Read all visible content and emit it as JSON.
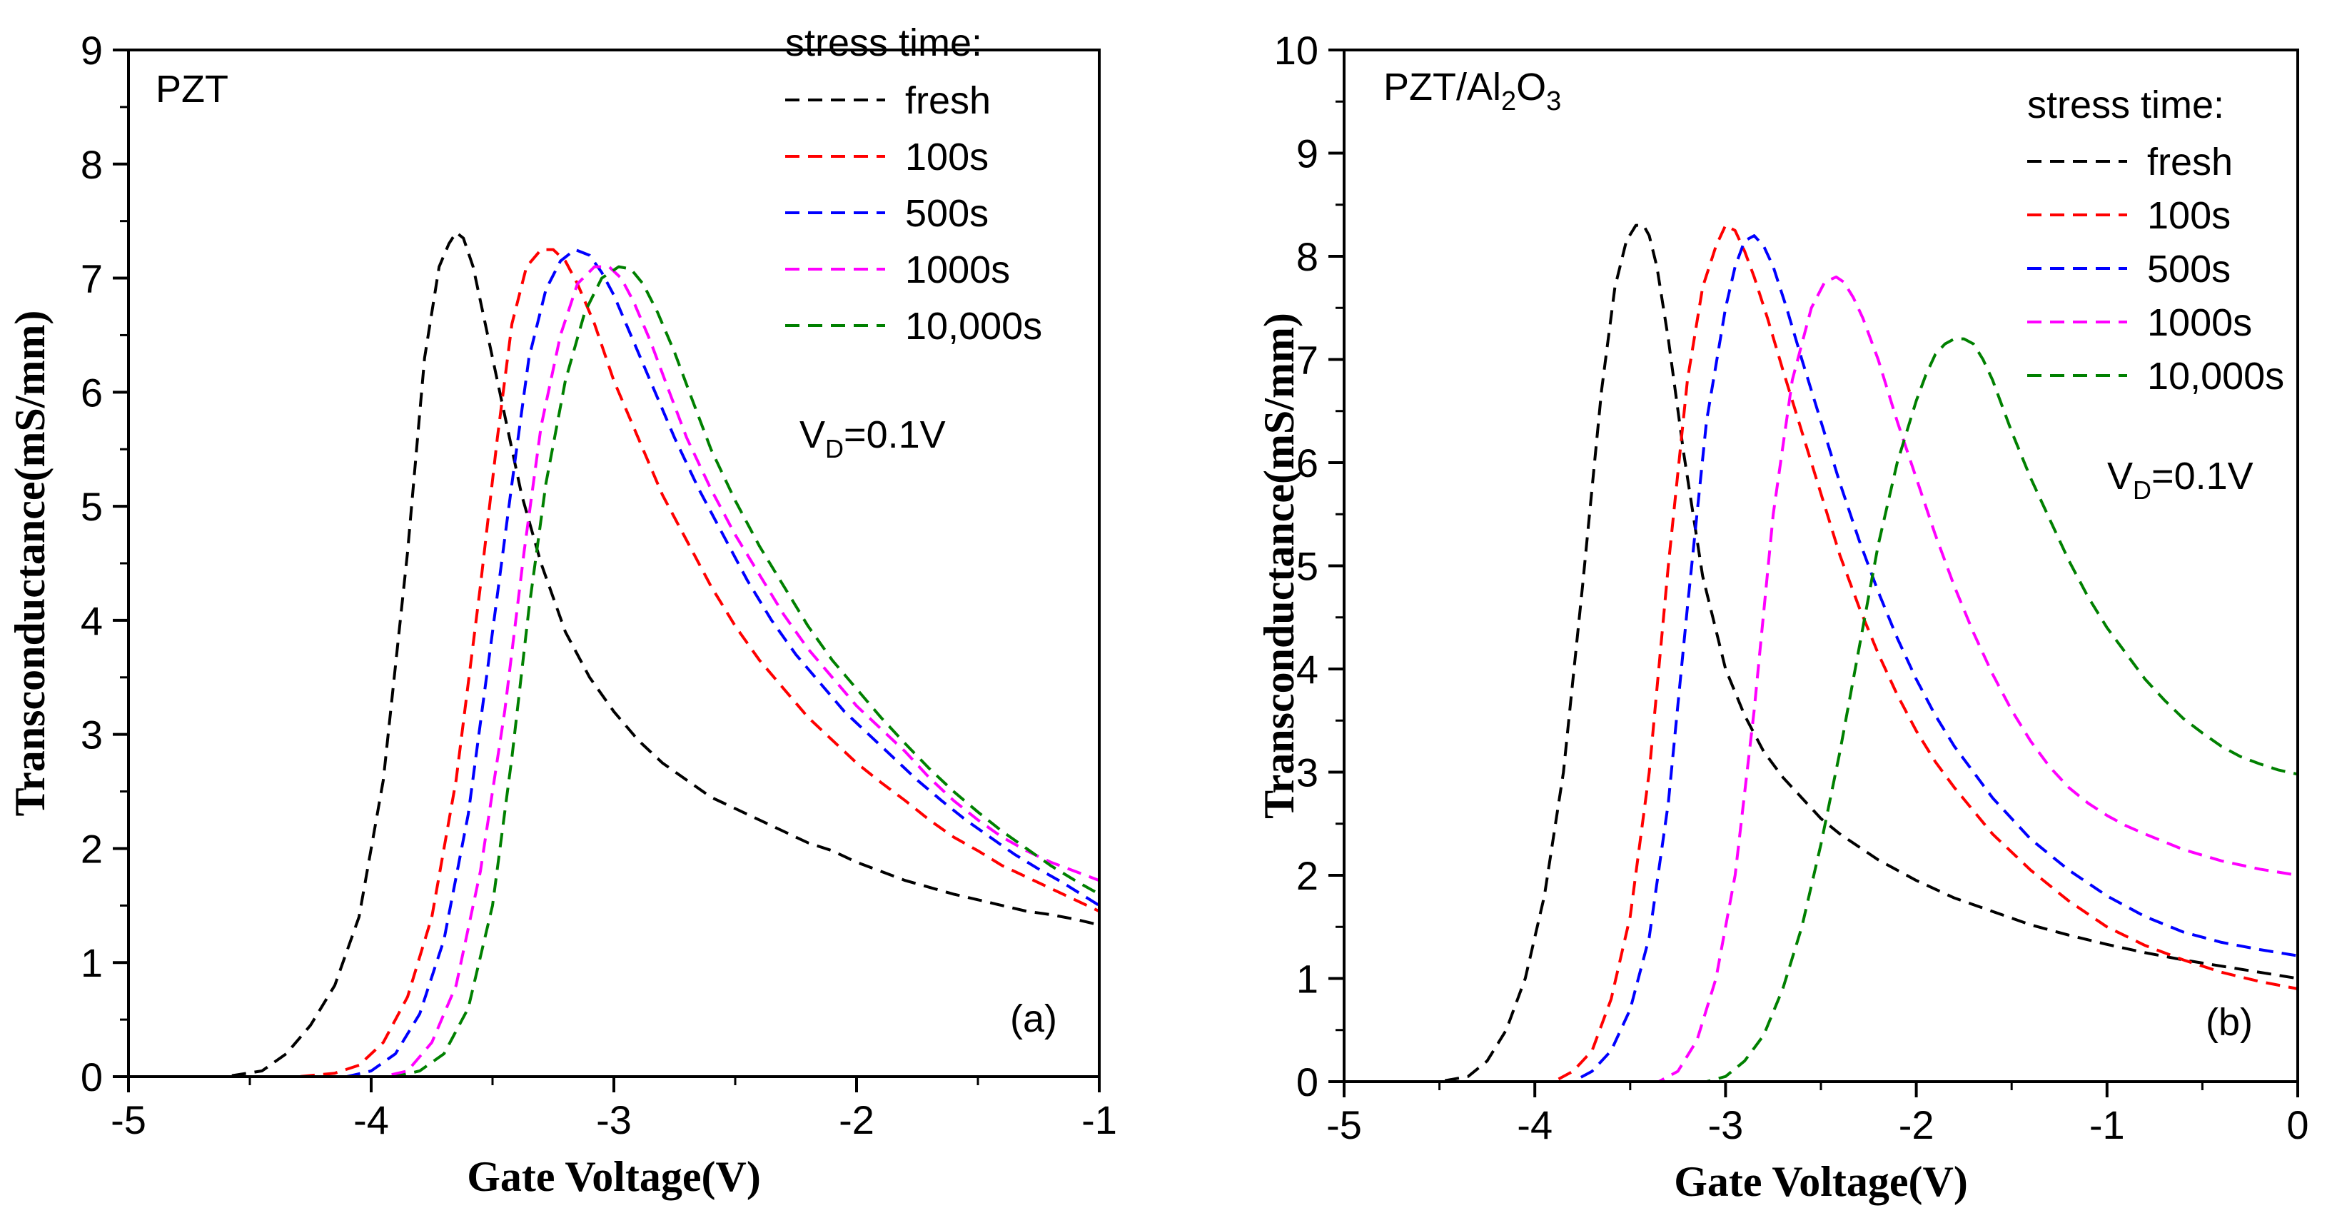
{
  "chart_data": [
    {
      "type": "line",
      "panel_label": "(a)",
      "sample_label": "PZT",
      "xlabel": "Gate Voltage(V)",
      "ylabel": "Transconductance(mS/mm)",
      "xlim": [
        -5,
        -1
      ],
      "ylim": [
        0,
        9
      ],
      "xticks": [
        -5,
        -4,
        -3,
        -2,
        -1
      ],
      "yticks": [
        0,
        1,
        2,
        3,
        4,
        5,
        6,
        7,
        8,
        9
      ],
      "legend_title": "stress time:",
      "annotation": {
        "base": "V",
        "sub": "D",
        "rest": "=0.1V"
      },
      "series": [
        {
          "name": "fresh",
          "color": "#000000",
          "x": [
            -4.95,
            -4.6,
            -4.45,
            -4.35,
            -4.25,
            -4.15,
            -4.05,
            -3.95,
            -3.85,
            -3.78,
            -3.72,
            -3.68,
            -3.65,
            -3.62,
            -3.58,
            -3.52,
            -3.45,
            -3.38,
            -3.3,
            -3.2,
            -3.1,
            -3.0,
            -2.9,
            -2.8,
            -2.7,
            -2.6,
            -2.5,
            -2.4,
            -2.3,
            -2.2,
            -2.1,
            -2.0,
            -1.9,
            -1.8,
            -1.7,
            -1.6,
            -1.5,
            -1.4,
            -1.3,
            -1.2,
            -1.1,
            -1.0
          ],
          "y": [
            0,
            0,
            0.05,
            0.2,
            0.45,
            0.8,
            1.4,
            2.6,
            4.6,
            6.3,
            7.1,
            7.3,
            7.4,
            7.35,
            7.1,
            6.5,
            5.8,
            5.1,
            4.5,
            3.9,
            3.5,
            3.2,
            2.95,
            2.75,
            2.6,
            2.45,
            2.35,
            2.25,
            2.15,
            2.05,
            1.98,
            1.88,
            1.8,
            1.72,
            1.66,
            1.6,
            1.55,
            1.5,
            1.45,
            1.42,
            1.38,
            1.33
          ]
        },
        {
          "name": "100s",
          "color": "#ff0000",
          "x": [
            -4.95,
            -4.3,
            -4.15,
            -4.05,
            -3.95,
            -3.85,
            -3.75,
            -3.65,
            -3.55,
            -3.48,
            -3.42,
            -3.36,
            -3.3,
            -3.25,
            -3.2,
            -3.15,
            -3.08,
            -3.0,
            -2.9,
            -2.8,
            -2.7,
            -2.6,
            -2.5,
            -2.4,
            -2.3,
            -2.2,
            -2.1,
            -2.0,
            -1.9,
            -1.8,
            -1.7,
            -1.6,
            -1.5,
            -1.4,
            -1.3,
            -1.2,
            -1.1,
            -1.0
          ],
          "y": [
            0,
            0,
            0.03,
            0.1,
            0.3,
            0.7,
            1.4,
            2.6,
            4.3,
            5.6,
            6.6,
            7.1,
            7.25,
            7.25,
            7.15,
            6.95,
            6.6,
            6.1,
            5.6,
            5.1,
            4.7,
            4.3,
            3.95,
            3.65,
            3.4,
            3.15,
            2.95,
            2.75,
            2.58,
            2.42,
            2.25,
            2.1,
            1.98,
            1.85,
            1.75,
            1.65,
            1.55,
            1.45
          ]
        },
        {
          "name": "500s",
          "color": "#0000ff",
          "x": [
            -4.95,
            -4.1,
            -4.0,
            -3.9,
            -3.8,
            -3.7,
            -3.6,
            -3.5,
            -3.42,
            -3.35,
            -3.28,
            -3.22,
            -3.16,
            -3.1,
            -3.05,
            -3.0,
            -2.92,
            -2.85,
            -2.75,
            -2.65,
            -2.55,
            -2.45,
            -2.35,
            -2.25,
            -2.15,
            -2.05,
            -1.95,
            -1.85,
            -1.75,
            -1.65,
            -1.55,
            -1.45,
            -1.35,
            -1.25,
            -1.15,
            -1.0
          ],
          "y": [
            0,
            0,
            0.05,
            0.2,
            0.55,
            1.2,
            2.3,
            3.9,
            5.2,
            6.3,
            6.9,
            7.15,
            7.25,
            7.2,
            7.05,
            6.85,
            6.45,
            6.1,
            5.6,
            5.15,
            4.75,
            4.35,
            4.0,
            3.7,
            3.45,
            3.2,
            3.0,
            2.8,
            2.6,
            2.42,
            2.25,
            2.1,
            1.95,
            1.82,
            1.7,
            1.5
          ]
        },
        {
          "name": "1000s",
          "color": "#ff00ff",
          "x": [
            -4.95,
            -3.95,
            -3.85,
            -3.75,
            -3.65,
            -3.55,
            -3.45,
            -3.37,
            -3.3,
            -3.22,
            -3.15,
            -3.08,
            -3.02,
            -2.97,
            -2.92,
            -2.85,
            -2.78,
            -2.7,
            -2.6,
            -2.5,
            -2.4,
            -2.3,
            -2.2,
            -2.1,
            -2.0,
            -1.9,
            -1.8,
            -1.7,
            -1.6,
            -1.5,
            -1.4,
            -1.3,
            -1.2,
            -1.1,
            -1.0
          ],
          "y": [
            0,
            0,
            0.05,
            0.3,
            0.8,
            1.8,
            3.2,
            4.6,
            5.7,
            6.5,
            6.95,
            7.1,
            7.1,
            7.0,
            6.8,
            6.45,
            6.05,
            5.6,
            5.15,
            4.75,
            4.4,
            4.05,
            3.75,
            3.5,
            3.25,
            3.05,
            2.85,
            2.62,
            2.42,
            2.25,
            2.1,
            1.98,
            1.88,
            1.8,
            1.72
          ]
        },
        {
          "name": "10,000s",
          "color": "#008000",
          "x": [
            -4.95,
            -3.9,
            -3.8,
            -3.7,
            -3.6,
            -3.5,
            -3.42,
            -3.35,
            -3.28,
            -3.2,
            -3.12,
            -3.05,
            -2.98,
            -2.93,
            -2.88,
            -2.82,
            -2.75,
            -2.68,
            -2.6,
            -2.5,
            -2.4,
            -2.3,
            -2.2,
            -2.1,
            -2.0,
            -1.9,
            -1.8,
            -1.7,
            -1.6,
            -1.5,
            -1.4,
            -1.3,
            -1.2,
            -1.1,
            -1.0
          ],
          "y": [
            0,
            0,
            0.05,
            0.2,
            0.6,
            1.5,
            2.8,
            4.1,
            5.2,
            6.1,
            6.7,
            7.0,
            7.1,
            7.08,
            6.95,
            6.7,
            6.35,
            5.95,
            5.5,
            5.05,
            4.65,
            4.3,
            3.95,
            3.65,
            3.4,
            3.15,
            2.92,
            2.7,
            2.5,
            2.32,
            2.15,
            2.0,
            1.85,
            1.72,
            1.6
          ]
        }
      ]
    },
    {
      "type": "line",
      "panel_label": "(b)",
      "sample_label": "PZT/Al",
      "sample_sub1": "2",
      "sample_mid": "O",
      "sample_sub2": "3",
      "xlabel": "Gate Voltage(V)",
      "ylabel": "Transconductance(mS/mm)",
      "xlim": [
        -5,
        0
      ],
      "ylim": [
        0,
        10
      ],
      "xticks": [
        -5,
        -4,
        -3,
        -2,
        -1,
        0
      ],
      "yticks": [
        0,
        1,
        2,
        3,
        4,
        5,
        6,
        7,
        8,
        9,
        10
      ],
      "legend_title": "stress time:",
      "annotation": {
        "base": "V",
        "sub": "D",
        "rest": "=0.1V"
      },
      "series": [
        {
          "name": "fresh",
          "color": "#000000",
          "x": [
            -4.95,
            -4.5,
            -4.35,
            -4.25,
            -4.15,
            -4.05,
            -3.95,
            -3.85,
            -3.75,
            -3.65,
            -3.58,
            -3.52,
            -3.47,
            -3.43,
            -3.4,
            -3.36,
            -3.3,
            -3.22,
            -3.12,
            -3.0,
            -2.9,
            -2.8,
            -2.7,
            -2.6,
            -2.5,
            -2.4,
            -2.2,
            -2.0,
            -1.8,
            -1.6,
            -1.4,
            -1.2,
            -1.0,
            -0.8,
            -0.6,
            -0.4,
            -0.2,
            0.0
          ],
          "y": [
            0,
            0,
            0.05,
            0.2,
            0.5,
            1.0,
            1.8,
            3.0,
            4.8,
            6.7,
            7.7,
            8.15,
            8.3,
            8.3,
            8.2,
            7.9,
            7.2,
            6.1,
            4.9,
            4.0,
            3.55,
            3.2,
            2.95,
            2.75,
            2.55,
            2.4,
            2.15,
            1.95,
            1.78,
            1.65,
            1.52,
            1.42,
            1.33,
            1.25,
            1.18,
            1.12,
            1.06,
            1.0
          ]
        },
        {
          "name": "100s",
          "color": "#ff0000",
          "x": [
            -4.95,
            -3.9,
            -3.8,
            -3.7,
            -3.6,
            -3.5,
            -3.4,
            -3.3,
            -3.2,
            -3.12,
            -3.05,
            -3.0,
            -2.95,
            -2.9,
            -2.85,
            -2.78,
            -2.7,
            -2.6,
            -2.5,
            -2.4,
            -2.3,
            -2.2,
            -2.1,
            -2.0,
            -1.9,
            -1.8,
            -1.6,
            -1.4,
            -1.2,
            -1.0,
            -0.8,
            -0.6,
            -0.4,
            -0.2,
            0.0
          ],
          "y": [
            0,
            0,
            0.1,
            0.3,
            0.8,
            1.6,
            3.0,
            5.0,
            6.8,
            7.7,
            8.1,
            8.3,
            8.25,
            8.05,
            7.8,
            7.4,
            6.9,
            6.3,
            5.7,
            5.1,
            4.6,
            4.15,
            3.75,
            3.4,
            3.1,
            2.85,
            2.4,
            2.05,
            1.75,
            1.5,
            1.32,
            1.18,
            1.06,
            0.97,
            0.9
          ]
        },
        {
          "name": "500s",
          "color": "#0000ff",
          "x": [
            -4.95,
            -3.8,
            -3.7,
            -3.6,
            -3.5,
            -3.4,
            -3.3,
            -3.2,
            -3.1,
            -3.0,
            -2.95,
            -2.9,
            -2.85,
            -2.8,
            -2.75,
            -2.68,
            -2.6,
            -2.5,
            -2.4,
            -2.3,
            -2.2,
            -2.1,
            -2.0,
            -1.9,
            -1.8,
            -1.7,
            -1.6,
            -1.4,
            -1.2,
            -1.0,
            -0.8,
            -0.6,
            -0.4,
            -0.2,
            0.0
          ],
          "y": [
            0,
            0,
            0.1,
            0.3,
            0.7,
            1.4,
            2.7,
            4.6,
            6.4,
            7.5,
            7.9,
            8.15,
            8.2,
            8.1,
            7.9,
            7.5,
            7.0,
            6.4,
            5.8,
            5.25,
            4.75,
            4.3,
            3.9,
            3.55,
            3.25,
            3.0,
            2.75,
            2.35,
            2.05,
            1.8,
            1.6,
            1.45,
            1.35,
            1.28,
            1.22
          ]
        },
        {
          "name": "1000s",
          "color": "#ff00ff",
          "x": [
            -4.95,
            -3.35,
            -3.25,
            -3.15,
            -3.05,
            -2.95,
            -2.85,
            -2.75,
            -2.65,
            -2.55,
            -2.48,
            -2.42,
            -2.38,
            -2.33,
            -2.28,
            -2.2,
            -2.1,
            -2.0,
            -1.9,
            -1.8,
            -1.7,
            -1.6,
            -1.5,
            -1.4,
            -1.3,
            -1.2,
            -1.1,
            -1.0,
            -0.9,
            -0.8,
            -0.6,
            -0.4,
            -0.2,
            0.0
          ],
          "y": [
            0,
            0,
            0.1,
            0.4,
            1.0,
            2.0,
            3.6,
            5.5,
            6.8,
            7.5,
            7.75,
            7.8,
            7.75,
            7.6,
            7.4,
            7.0,
            6.4,
            5.85,
            5.3,
            4.8,
            4.35,
            3.95,
            3.6,
            3.3,
            3.05,
            2.85,
            2.7,
            2.58,
            2.48,
            2.4,
            2.25,
            2.14,
            2.06,
            2.0
          ]
        },
        {
          "name": "10,000s",
          "color": "#008000",
          "x": [
            -4.95,
            -3.1,
            -3.0,
            -2.9,
            -2.8,
            -2.7,
            -2.6,
            -2.5,
            -2.4,
            -2.3,
            -2.2,
            -2.1,
            -2.0,
            -1.95,
            -1.9,
            -1.85,
            -1.8,
            -1.75,
            -1.7,
            -1.65,
            -1.6,
            -1.5,
            -1.4,
            -1.3,
            -1.2,
            -1.1,
            -1.0,
            -0.9,
            -0.8,
            -0.7,
            -0.6,
            -0.5,
            -0.4,
            -0.3,
            -0.2,
            -0.1,
            0.0
          ],
          "y": [
            0,
            0,
            0.05,
            0.2,
            0.45,
            0.9,
            1.5,
            2.3,
            3.2,
            4.2,
            5.2,
            6.0,
            6.6,
            6.85,
            7.05,
            7.15,
            7.2,
            7.2,
            7.15,
            7.0,
            6.8,
            6.3,
            5.85,
            5.45,
            5.05,
            4.7,
            4.4,
            4.15,
            3.9,
            3.7,
            3.52,
            3.38,
            3.25,
            3.15,
            3.08,
            3.02,
            2.98
          ]
        }
      ]
    }
  ]
}
